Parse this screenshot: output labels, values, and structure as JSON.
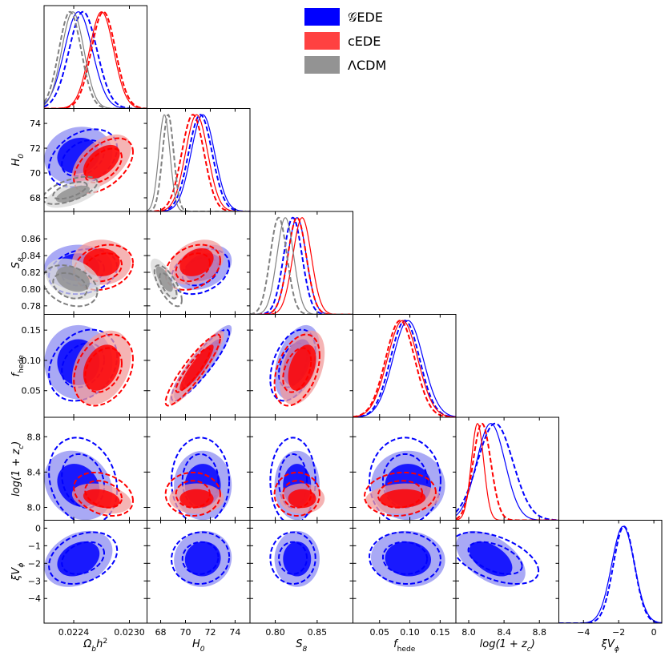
{
  "chart_data": {
    "type": "scatter",
    "title": "",
    "legend": {
      "placement": "top-center",
      "entries": [
        {
          "label": "𝒢EDE",
          "color": "#0000ff"
        },
        {
          "label": "cEDE",
          "color": "#ff2020"
        },
        {
          "label": "ΛCDM",
          "color": "#808080"
        }
      ]
    },
    "parameters": [
      {
        "key": "omb",
        "label": "Ωbh²",
        "label_base": "Ω",
        "label_sub": "b",
        "label_rest": "h",
        "label_sup": "2",
        "range": [
          0.02208,
          0.02319
        ],
        "ticks": [
          0.0224,
          0.023
        ],
        "tick_labels": [
          "0.0224",
          "0.0230"
        ]
      },
      {
        "key": "h0",
        "label": "H₀",
        "label_base": "H",
        "label_sub": "0",
        "range": [
          66.9,
          75.2
        ],
        "ticks": [
          68,
          70,
          72,
          74
        ],
        "tick_labels": [
          "68",
          "70",
          "72",
          "74"
        ]
      },
      {
        "key": "s8",
        "label": "S₈",
        "label_base": "S",
        "label_sub": "8",
        "range": [
          0.7698,
          0.8927
        ],
        "ticks": [
          0.8,
          0.85
        ],
        "tick_labels": [
          "0.80",
          "0.85"
        ],
        "y_ticks": [
          0.78,
          0.8,
          0.82,
          0.84,
          0.86
        ],
        "y_tick_labels": [
          "0.78",
          "0.80",
          "0.82",
          "0.84",
          "0.86"
        ]
      },
      {
        "key": "fhede",
        "label": "fhede",
        "label_base": "f",
        "label_sub": "hede",
        "range": [
          0.006,
          0.176
        ],
        "ticks": [
          0.05,
          0.1,
          0.15
        ],
        "tick_labels": [
          "0.05",
          "0.10",
          "0.15"
        ]
      },
      {
        "key": "lz",
        "label": "log(1+zc)",
        "label_base": "log(1 + z",
        "label_sub": "c",
        "label_rest": ")",
        "range": [
          7.855,
          9.02
        ],
        "ticks": [
          8.0,
          8.4,
          8.8
        ],
        "tick_labels": [
          "8.0",
          "8.4",
          "8.8"
        ]
      },
      {
        "key": "xv",
        "label": "ξVφ",
        "label_base": "ξV",
        "label_sub": "ϕ",
        "range": [
          -5.4,
          0.45
        ],
        "ticks": [
          -4,
          -2,
          0
        ],
        "tick_labels": [
          "−4",
          "−2",
          "0"
        ],
        "y_ticks": [
          0,
          -1,
          -2,
          -3,
          -4
        ],
        "y_tick_labels": [
          "0",
          "−1",
          "−2",
          "−3",
          "−4"
        ]
      }
    ],
    "series": [
      {
        "name": "𝒢EDE",
        "color": "#0000ff",
        "fill_inner": "#0000ff",
        "fill_outer": "#8c8cf2",
        "means": {
          "omb": 0.02245,
          "h0": 71.4,
          "s8": 0.826,
          "fhede": 0.097,
          "lz": 8.25,
          "xv": -1.75
        },
        "sigmas": {
          "omb": 0.00015,
          "h0": 0.95,
          "s8": 0.011,
          "fhede": 0.025,
          "lz": 0.16,
          "xv": 0.65
        },
        "corr": {
          "omb-h0": 0.1,
          "omb-s8": 0.0,
          "omb-fhede": 0.0,
          "omb-lz": -0.2,
          "omb-xv": 0.3,
          "h0-s8": 0.3,
          "h0-fhede": 0.9,
          "h0-lz": 0.0,
          "h0-xv": 0.05,
          "s8-fhede": 0.4,
          "s8-lz": 0.0,
          "s8-xv": 0.0,
          "fhede-lz": 0.0,
          "fhede-xv": -0.05,
          "lz-xv": -0.5
        }
      },
      {
        "name": "𝒢EDE (dashed)",
        "color": "#0000ff",
        "dashed": true,
        "fill": false,
        "means": {
          "omb": 0.0225,
          "h0": 71.2,
          "s8": 0.821,
          "fhede": 0.092,
          "lz": 8.3,
          "xv": -1.7
        },
        "sigmas": {
          "omb": 0.00015,
          "h0": 0.95,
          "s8": 0.011,
          "fhede": 0.024,
          "lz": 0.2,
          "xv": 0.6
        },
        "corr": {
          "omb-h0": 0.35,
          "omb-s8": 0.2,
          "omb-fhede": 0.25,
          "omb-lz": -0.2,
          "omb-xv": 0.3,
          "h0-s8": 0.3,
          "h0-fhede": 0.9,
          "h0-lz": 0.0,
          "h0-xv": 0.05,
          "s8-fhede": 0.4,
          "s8-lz": 0.0,
          "s8-xv": 0.0,
          "fhede-lz": 0.0,
          "fhede-xv": -0.05,
          "lz-xv": -0.5
        }
      },
      {
        "name": "cEDE",
        "color": "#ff0000",
        "fill_inner": "#ff0000",
        "fill_outer": "#f29b9b",
        "means": {
          "omb": 0.0227,
          "h0": 70.9,
          "s8": 0.832,
          "fhede": 0.088,
          "lz": 8.1,
          "xv": null
        },
        "sigmas": {
          "omb": 0.00013,
          "h0": 0.9,
          "s8": 0.011,
          "fhede": 0.025,
          "lz": 0.07,
          "xv": null
        },
        "corr": {
          "omb-h0": 0.5,
          "omb-s8": 0.0,
          "omb-fhede": 0.3,
          "omb-lz": -0.3,
          "h0-s8": 0.3,
          "h0-fhede": 0.9,
          "h0-lz": 0.0,
          "s8-fhede": 0.4,
          "s8-lz": 0.0,
          "fhede-lz": 0.1
        }
      },
      {
        "name": "cEDE (dashed)",
        "color": "#ff0000",
        "dashed": true,
        "fill": false,
        "means": {
          "omb": 0.02272,
          "h0": 70.6,
          "s8": 0.826,
          "fhede": 0.084,
          "lz": 8.15,
          "xv": null
        },
        "sigmas": {
          "omb": 0.00013,
          "h0": 0.9,
          "s8": 0.011,
          "fhede": 0.024,
          "lz": 0.1,
          "xv": null
        },
        "corr": {
          "omb-h0": 0.5,
          "omb-s8": 0.2,
          "omb-fhede": 0.3,
          "omb-lz": -0.3,
          "h0-s8": 0.3,
          "h0-fhede": 0.9,
          "h0-lz": 0.0,
          "s8-fhede": 0.4,
          "s8-lz": 0.0,
          "fhede-lz": 0.1
        }
      },
      {
        "name": "ΛCDM",
        "color": "#808080",
        "fill_inner": "#909090",
        "fill_outer": "#d8d8d8",
        "means": {
          "omb": 0.02239,
          "h0": 68.3,
          "s8": 0.812,
          "fhede": null,
          "lz": null,
          "xv": null
        },
        "sigmas": {
          "omb": 0.00012,
          "h0": 0.45,
          "s8": 0.01,
          "fhede": null,
          "lz": null,
          "xv": null
        },
        "corr": {
          "omb-h0": 0.6,
          "omb-s8": -0.3,
          "h0-s8": -0.7
        }
      },
      {
        "name": "ΛCDM (dashed)",
        "color": "#808080",
        "dashed": true,
        "fill": false,
        "means": {
          "omb": 0.02236,
          "h0": 68.6,
          "s8": 0.804,
          "fhede": null,
          "lz": null,
          "xv": null
        },
        "sigmas": {
          "omb": 0.00012,
          "h0": 0.45,
          "s8": 0.01,
          "fhede": null,
          "lz": null,
          "xv": null
        },
        "corr": {
          "omb-h0": 0.6,
          "omb-s8": -0.3,
          "h0-s8": -0.7
        }
      }
    ]
  }
}
